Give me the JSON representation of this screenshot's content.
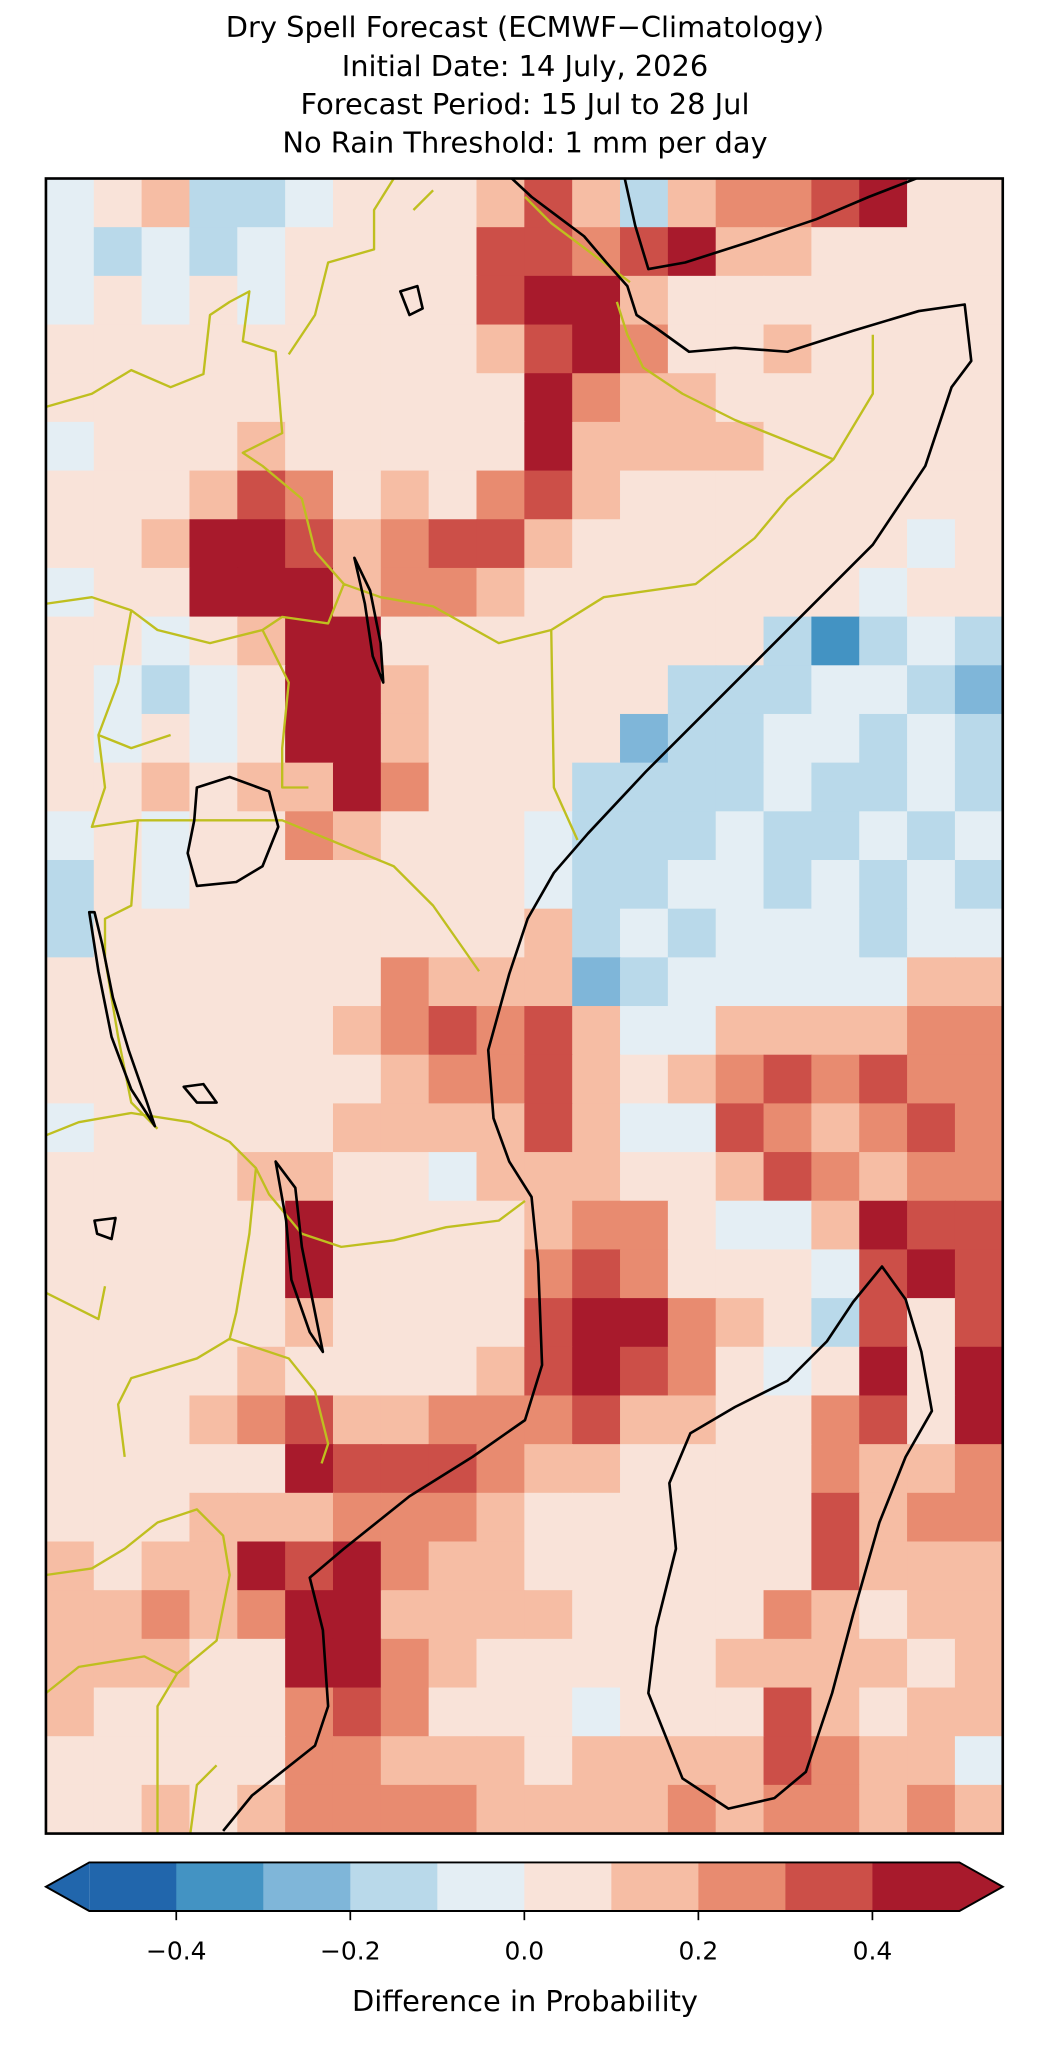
{
  "chart_data": {
    "type": "heatmap",
    "title": [
      "Dry Spell Forecast (ECMWF−Climatology)",
      "Initial Date: 14 July, 2026",
      "Forecast Period: 15 Jul to 28 Jul",
      "No Rain Threshold: 1 mm per day"
    ],
    "values": [
      [
        -0.05,
        0.05,
        0.15,
        -0.15,
        -0.15,
        -0.05,
        0.05,
        0.05,
        0.05,
        0.15,
        0.35,
        0.15,
        -0.15,
        0.15,
        0.25,
        0.25,
        0.35,
        0.45,
        0.05,
        0.05
      ],
      [
        -0.05,
        -0.15,
        -0.05,
        -0.15,
        -0.05,
        0.05,
        0.05,
        0.05,
        0.05,
        0.35,
        0.35,
        0.25,
        0.35,
        0.45,
        0.15,
        0.15,
        0.05,
        0.05,
        0.05,
        0.05
      ],
      [
        -0.05,
        0.05,
        -0.05,
        0.05,
        -0.05,
        0.05,
        0.05,
        0.05,
        0.05,
        0.35,
        0.45,
        0.45,
        0.15,
        0.05,
        0.05,
        0.05,
        0.05,
        0.05,
        0.05,
        0.05
      ],
      [
        0.05,
        0.05,
        0.05,
        0.05,
        0.05,
        0.05,
        0.05,
        0.05,
        0.05,
        0.15,
        0.35,
        0.45,
        0.25,
        0.05,
        0.05,
        0.15,
        0.05,
        0.05,
        0.05,
        0.05
      ],
      [
        0.05,
        0.05,
        0.05,
        0.05,
        0.05,
        0.05,
        0.05,
        0.05,
        0.05,
        0.05,
        0.45,
        0.25,
        0.15,
        0.15,
        0.05,
        0.05,
        0.05,
        0.05,
        0.05,
        0.05
      ],
      [
        -0.05,
        0.05,
        0.05,
        0.05,
        0.15,
        0.05,
        0.05,
        0.05,
        0.05,
        0.05,
        0.45,
        0.15,
        0.15,
        0.15,
        0.15,
        0.05,
        0.05,
        0.05,
        0.05,
        0.05
      ],
      [
        0.05,
        0.05,
        0.05,
        0.15,
        0.35,
        0.25,
        0.05,
        0.15,
        0.05,
        0.25,
        0.35,
        0.15,
        0.05,
        0.05,
        0.05,
        0.05,
        0.05,
        0.05,
        0.05,
        0.05
      ],
      [
        0.05,
        0.05,
        0.15,
        0.45,
        0.45,
        0.35,
        0.15,
        0.25,
        0.35,
        0.35,
        0.15,
        0.05,
        0.05,
        0.05,
        0.05,
        0.05,
        0.05,
        0.05,
        -0.05,
        0.05
      ],
      [
        -0.05,
        0.05,
        0.05,
        0.45,
        0.45,
        0.45,
        0.15,
        0.25,
        0.25,
        0.15,
        0.05,
        0.05,
        0.05,
        0.05,
        0.05,
        0.05,
        0.05,
        -0.05,
        0.05,
        0.05
      ],
      [
        0.05,
        0.05,
        -0.05,
        0.05,
        0.15,
        0.45,
        0.45,
        0.05,
        0.05,
        0.05,
        0.05,
        0.05,
        0.05,
        0.05,
        0.05,
        -0.15,
        -0.35,
        -0.15,
        -0.05,
        -0.15
      ],
      [
        0.05,
        -0.05,
        -0.15,
        -0.05,
        0.05,
        0.45,
        0.45,
        0.15,
        0.05,
        0.05,
        0.05,
        0.05,
        0.05,
        -0.15,
        -0.15,
        -0.15,
        -0.05,
        -0.05,
        -0.15,
        -0.25
      ],
      [
        0.05,
        -0.05,
        0.05,
        -0.05,
        0.05,
        0.45,
        0.45,
        0.15,
        0.05,
        0.05,
        0.05,
        0.05,
        -0.25,
        -0.15,
        -0.15,
        -0.05,
        -0.05,
        -0.15,
        -0.05,
        -0.15
      ],
      [
        0.05,
        0.05,
        0.15,
        0.05,
        0.15,
        0.15,
        0.45,
        0.25,
        0.05,
        0.05,
        0.05,
        -0.15,
        -0.15,
        -0.15,
        -0.15,
        -0.05,
        -0.15,
        -0.15,
        -0.05,
        -0.15
      ],
      [
        -0.05,
        0.05,
        -0.05,
        0.05,
        0.05,
        0.25,
        0.15,
        0.05,
        0.05,
        0.05,
        -0.05,
        -0.15,
        -0.15,
        -0.15,
        -0.05,
        -0.15,
        -0.15,
        -0.05,
        -0.15,
        -0.05
      ],
      [
        -0.15,
        0.05,
        -0.05,
        0.05,
        0.05,
        0.05,
        0.05,
        0.05,
        0.05,
        0.05,
        -0.05,
        -0.15,
        -0.15,
        -0.05,
        -0.05,
        -0.15,
        -0.05,
        -0.15,
        -0.05,
        -0.15
      ],
      [
        -0.15,
        0.05,
        0.05,
        0.05,
        0.05,
        0.05,
        0.05,
        0.05,
        0.05,
        0.05,
        0.15,
        -0.15,
        -0.05,
        -0.15,
        -0.05,
        -0.05,
        -0.05,
        -0.15,
        -0.05,
        -0.05
      ],
      [
        0.05,
        0.05,
        0.05,
        0.05,
        0.05,
        0.05,
        0.05,
        0.25,
        0.15,
        0.15,
        0.15,
        -0.25,
        -0.15,
        -0.05,
        -0.05,
        -0.05,
        -0.05,
        -0.05,
        0.15,
        0.15
      ],
      [
        0.05,
        0.05,
        0.05,
        0.05,
        0.05,
        0.05,
        0.15,
        0.25,
        0.35,
        0.25,
        0.35,
        0.15,
        -0.05,
        -0.05,
        0.15,
        0.15,
        0.15,
        0.15,
        0.25,
        0.25
      ],
      [
        0.05,
        0.05,
        0.05,
        0.05,
        0.05,
        0.05,
        0.05,
        0.15,
        0.25,
        0.25,
        0.35,
        0.15,
        0.05,
        0.15,
        0.25,
        0.35,
        0.25,
        0.35,
        0.25,
        0.25
      ],
      [
        -0.05,
        0.05,
        0.05,
        0.05,
        0.05,
        0.05,
        0.15,
        0.15,
        0.15,
        0.15,
        0.35,
        0.15,
        -0.05,
        -0.05,
        0.35,
        0.25,
        0.15,
        0.25,
        0.35,
        0.25
      ],
      [
        0.05,
        0.05,
        0.05,
        0.05,
        0.15,
        0.15,
        0.05,
        0.05,
        -0.05,
        0.15,
        0.15,
        0.15,
        0.05,
        0.05,
        0.15,
        0.35,
        0.25,
        0.15,
        0.25,
        0.25
      ],
      [
        0.05,
        0.05,
        0.05,
        0.05,
        0.05,
        0.45,
        0.05,
        0.05,
        0.05,
        0.05,
        0.15,
        0.25,
        0.25,
        0.05,
        -0.05,
        -0.05,
        0.15,
        0.45,
        0.35,
        0.35
      ],
      [
        0.05,
        0.05,
        0.05,
        0.05,
        0.05,
        0.45,
        0.05,
        0.05,
        0.05,
        0.05,
        0.25,
        0.35,
        0.25,
        0.05,
        0.05,
        0.05,
        -0.05,
        0.35,
        0.45,
        0.35
      ],
      [
        0.05,
        0.05,
        0.05,
        0.05,
        0.05,
        0.15,
        0.05,
        0.05,
        0.05,
        0.05,
        0.35,
        0.45,
        0.45,
        0.25,
        0.15,
        0.05,
        -0.15,
        0.35,
        0.05,
        0.35
      ],
      [
        0.05,
        0.05,
        0.05,
        0.05,
        0.15,
        0.05,
        0.05,
        0.05,
        0.05,
        0.15,
        0.35,
        0.45,
        0.35,
        0.25,
        0.05,
        -0.05,
        0.05,
        0.45,
        0.05,
        0.45
      ],
      [
        0.05,
        0.05,
        0.05,
        0.15,
        0.25,
        0.35,
        0.15,
        0.15,
        0.25,
        0.25,
        0.25,
        0.35,
        0.15,
        0.15,
        0.05,
        0.05,
        0.25,
        0.35,
        0.05,
        0.45
      ],
      [
        0.05,
        0.05,
        0.05,
        0.05,
        0.05,
        0.45,
        0.35,
        0.35,
        0.35,
        0.25,
        0.15,
        0.15,
        0.05,
        0.05,
        0.05,
        0.05,
        0.25,
        0.15,
        0.15,
        0.25
      ],
      [
        0.05,
        0.05,
        0.05,
        0.15,
        0.15,
        0.15,
        0.25,
        0.25,
        0.25,
        0.15,
        0.05,
        0.05,
        0.05,
        0.05,
        0.05,
        0.05,
        0.35,
        0.15,
        0.25,
        0.25
      ],
      [
        0.15,
        0.05,
        0.15,
        0.15,
        0.45,
        0.35,
        0.45,
        0.25,
        0.15,
        0.15,
        0.05,
        0.05,
        0.05,
        0.05,
        0.05,
        0.05,
        0.35,
        0.15,
        0.15,
        0.15
      ],
      [
        0.15,
        0.15,
        0.25,
        0.15,
        0.25,
        0.45,
        0.45,
        0.15,
        0.15,
        0.15,
        0.15,
        0.05,
        0.05,
        0.05,
        0.05,
        0.25,
        0.15,
        0.05,
        0.15,
        0.15
      ],
      [
        0.15,
        0.15,
        0.15,
        0.05,
        0.05,
        0.45,
        0.45,
        0.25,
        0.15,
        0.05,
        0.05,
        0.05,
        0.05,
        0.05,
        0.15,
        0.15,
        0.15,
        0.15,
        0.05,
        0.15
      ],
      [
        0.15,
        0.05,
        0.05,
        0.05,
        0.05,
        0.25,
        0.35,
        0.25,
        0.05,
        0.05,
        0.05,
        -0.05,
        0.05,
        0.05,
        0.05,
        0.35,
        0.15,
        0.05,
        0.15,
        0.15
      ],
      [
        0.05,
        0.05,
        0.05,
        0.05,
        0.05,
        0.25,
        0.25,
        0.15,
        0.15,
        0.15,
        0.05,
        0.15,
        0.15,
        0.15,
        0.15,
        0.35,
        0.25,
        0.15,
        0.15,
        -0.05
      ],
      [
        0.05,
        0.05,
        0.15,
        0.05,
        0.15,
        0.25,
        0.25,
        0.25,
        0.25,
        0.15,
        0.15,
        0.15,
        0.15,
        0.25,
        0.15,
        0.25,
        0.25,
        0.15,
        0.25,
        0.15
      ]
    ],
    "colorbar": {
      "label": "Difference in Probability",
      "levels": [
        -0.5,
        -0.4,
        -0.3,
        -0.2,
        -0.1,
        0,
        0.1,
        0.2,
        0.3,
        0.4,
        0.5
      ],
      "colors": [
        "#2166ac",
        "#4393c3",
        "#7fb6d9",
        "#b9d9ea",
        "#e4eef4",
        "#f9e3d9",
        "#f6bda4",
        "#e88b70",
        "#cc4f48",
        "#a81a2c"
      ],
      "extend": "both",
      "ticks": [
        {
          "value": -0.4,
          "label": "−0.4"
        },
        {
          "value": -0.2,
          "label": "−0.2"
        },
        {
          "value": 0,
          "label": "0.0"
        },
        0.2,
        0.4
      ]
    }
  }
}
